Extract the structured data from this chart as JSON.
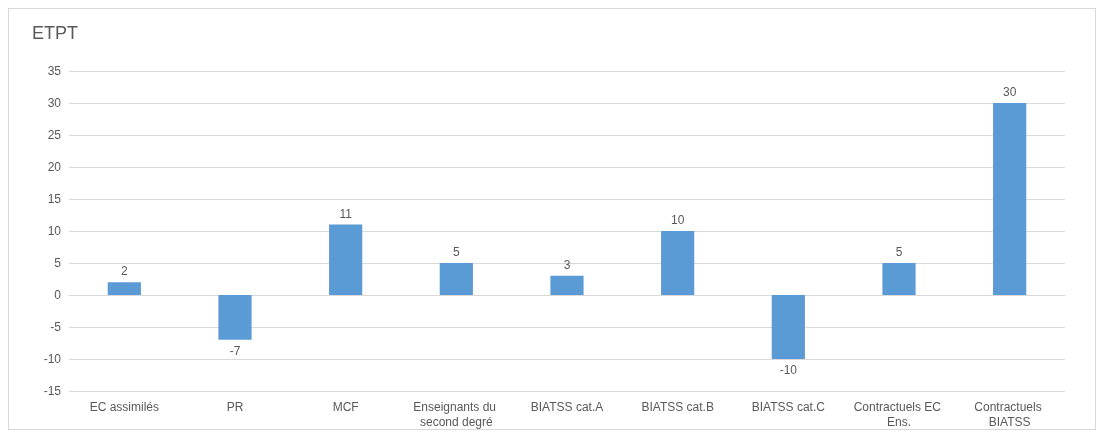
{
  "chart_data": {
    "type": "bar",
    "title": "ETPT",
    "categories": [
      "EC assimilés",
      "PR",
      "MCF",
      "Enseignants du second degré",
      "BIATSS cat.A",
      "BIATSS cat.B",
      "BIATSS cat.C",
      "Contractuels EC Ens.",
      "Contractuels BIATSS"
    ],
    "values": [
      2,
      -7,
      11,
      5,
      3,
      10,
      -10,
      5,
      30
    ],
    "color": "#5b9bd5",
    "ylim": [
      -15,
      35
    ],
    "yticks": [
      -15,
      -10,
      -5,
      0,
      5,
      10,
      15,
      20,
      25,
      30,
      35
    ],
    "grid": "y",
    "data_labels": true
  }
}
